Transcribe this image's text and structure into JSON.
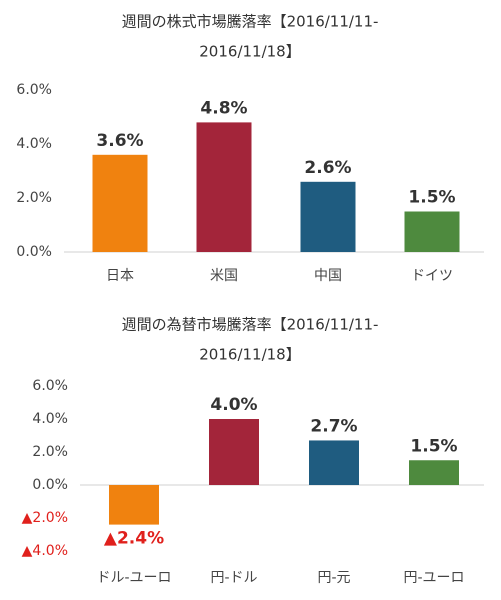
{
  "chart_data": [
    {
      "type": "bar",
      "title": [
        "週間の株式市場騰落率【2016/11/11-",
        "2016/11/18】"
      ],
      "categories": [
        "日本",
        "米国",
        "中国",
        "ドイツ"
      ],
      "values": [
        3.6,
        4.8,
        2.6,
        1.5
      ],
      "value_labels": [
        "3.6%",
        "4.8%",
        "2.6%",
        "1.5%"
      ],
      "colors": [
        "#f0820f",
        "#a3253a",
        "#1f5c80",
        "#4e8a3e"
      ],
      "ylim": [
        0,
        6
      ],
      "yticks": [
        {
          "value": 0,
          "label": "0.0%"
        },
        {
          "value": 2,
          "label": "2.0%"
        },
        {
          "value": 4,
          "label": "4.0%"
        },
        {
          "value": 6,
          "label": "6.0%"
        }
      ],
      "grid": false
    },
    {
      "type": "bar",
      "title": [
        "週間の為替市場騰落率【2016/11/11-",
        "2016/11/18】"
      ],
      "categories": [
        "ドル-ユーロ",
        "円-ドル",
        "円-元",
        "円-ユーロ"
      ],
      "values": [
        -2.4,
        4.0,
        2.7,
        1.5
      ],
      "value_labels": [
        "▲2.4%",
        "4.0%",
        "2.7%",
        "1.5%"
      ],
      "colors": [
        "#f0820f",
        "#a3253a",
        "#1f5c80",
        "#4e8a3e"
      ],
      "ylim": [
        -4,
        6
      ],
      "yticks": [
        {
          "value": -4,
          "label": "▲4.0%"
        },
        {
          "value": -2,
          "label": "▲2.0%"
        },
        {
          "value": 0,
          "label": "0.0%"
        },
        {
          "value": 2,
          "label": "2.0%"
        },
        {
          "value": 4,
          "label": "4.0%"
        },
        {
          "value": 6,
          "label": "6.0%"
        }
      ],
      "grid": false
    }
  ]
}
